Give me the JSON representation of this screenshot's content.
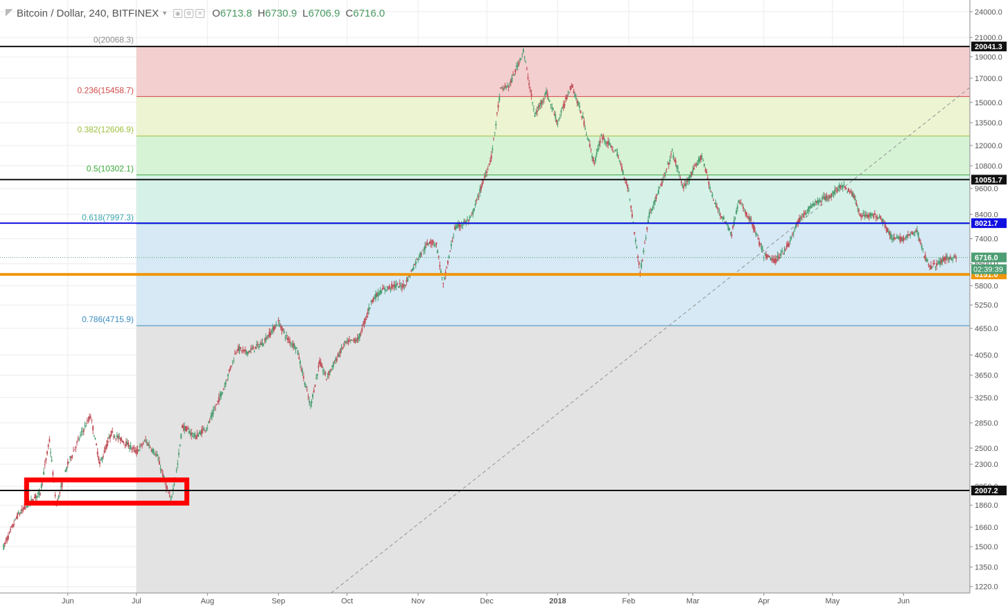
{
  "header": {
    "symbol_title": "Bitcoin / Dollar, 240, BITFINEX",
    "ohlc": [
      {
        "key": "O",
        "value": "6713.8"
      },
      {
        "key": "H",
        "value": "6730.9"
      },
      {
        "key": "L",
        "value": "6706.9"
      },
      {
        "key": "C",
        "value": "6716.0"
      }
    ]
  },
  "colors": {
    "up": "#4e9e73",
    "down": "#c0505a",
    "fib_line_0": "#8c8c8c",
    "fib_zone_0": "#f4cfcf",
    "fib_zone_1": "#ecf4d2",
    "fib_zone_2": "#d6f3d6",
    "fib_zone_3": "#d6f2e8",
    "fib_zone_4": "#d6e9f4",
    "fib_zone_5": "#e3e3e3",
    "black_line": "#111111",
    "blue_line": "#1010e0",
    "orange_line": "#f0960a",
    "highlight_box": "#ff0000",
    "current_price": "#4e9e73"
  },
  "chart_data": {
    "type": "candlestick",
    "scale": "log",
    "ylim": [
      1180,
      25500
    ],
    "x_axis_labels": [
      {
        "label": "Jun",
        "date": "2017-06-01"
      },
      {
        "label": "Jul",
        "date": "2017-07-01"
      },
      {
        "label": "Aug",
        "date": "2017-08-01"
      },
      {
        "label": "Sep",
        "date": "2017-09-01"
      },
      {
        "label": "Oct",
        "date": "2017-10-01"
      },
      {
        "label": "Nov",
        "date": "2017-11-01"
      },
      {
        "label": "Dec",
        "date": "2017-12-01"
      },
      {
        "label": "2018",
        "date": "2018-01-01",
        "bold": true
      },
      {
        "label": "Feb",
        "date": "2018-02-01"
      },
      {
        "label": "Mar",
        "date": "2018-03-01"
      },
      {
        "label": "Apr",
        "date": "2018-04-01"
      },
      {
        "label": "May",
        "date": "2018-05-01"
      },
      {
        "label": "Jun",
        "date": "2018-06-01"
      }
    ],
    "y_ticks": [
      "24000.0",
      "21000.0",
      "19000.0",
      "17000.0",
      "15000.0",
      "13500.0",
      "12000.0",
      "10800.0",
      "9600.0",
      "8400.0",
      "7400.0",
      "6500.0",
      "5800.0",
      "5250.0",
      "4650.0",
      "4050.0",
      "3650.0",
      "3250.0",
      "2850.0",
      "2500.0",
      "2300.0",
      "2050.0",
      "1860.0",
      "1660.0",
      "1500.0",
      "1350.0",
      "1220.0"
    ],
    "price_path": [
      {
        "date": "2017-05-04",
        "price": 1500
      },
      {
        "date": "2017-05-10",
        "price": 1760
      },
      {
        "date": "2017-05-14",
        "price": 1850
      },
      {
        "date": "2017-05-20",
        "price": 1990
      },
      {
        "date": "2017-05-24",
        "price": 2600
      },
      {
        "date": "2017-05-27",
        "price": 1860
      },
      {
        "date": "2017-06-01",
        "price": 2300
      },
      {
        "date": "2017-06-07",
        "price": 2700
      },
      {
        "date": "2017-06-11",
        "price": 2950
      },
      {
        "date": "2017-06-15",
        "price": 2300
      },
      {
        "date": "2017-06-20",
        "price": 2700
      },
      {
        "date": "2017-06-25",
        "price": 2600
      },
      {
        "date": "2017-07-01",
        "price": 2450
      },
      {
        "date": "2017-07-05",
        "price": 2600
      },
      {
        "date": "2017-07-10",
        "price": 2400
      },
      {
        "date": "2017-07-16",
        "price": 1900
      },
      {
        "date": "2017-07-19",
        "price": 2300
      },
      {
        "date": "2017-07-21",
        "price": 2800
      },
      {
        "date": "2017-07-27",
        "price": 2650
      },
      {
        "date": "2017-08-01",
        "price": 2800
      },
      {
        "date": "2017-08-08",
        "price": 3400
      },
      {
        "date": "2017-08-14",
        "price": 4200
      },
      {
        "date": "2017-08-18",
        "price": 4100
      },
      {
        "date": "2017-08-25",
        "price": 4300
      },
      {
        "date": "2017-09-01",
        "price": 4800
      },
      {
        "date": "2017-09-05",
        "price": 4400
      },
      {
        "date": "2017-09-09",
        "price": 4200
      },
      {
        "date": "2017-09-15",
        "price": 3100
      },
      {
        "date": "2017-09-19",
        "price": 3900
      },
      {
        "date": "2017-09-22",
        "price": 3600
      },
      {
        "date": "2017-09-30",
        "price": 4300
      },
      {
        "date": "2017-10-06",
        "price": 4400
      },
      {
        "date": "2017-10-12",
        "price": 5400
      },
      {
        "date": "2017-10-16",
        "price": 5650
      },
      {
        "date": "2017-10-21",
        "price": 5800
      },
      {
        "date": "2017-10-26",
        "price": 5800
      },
      {
        "date": "2017-11-01",
        "price": 6700
      },
      {
        "date": "2017-11-06",
        "price": 7300
      },
      {
        "date": "2017-11-09",
        "price": 7200
      },
      {
        "date": "2017-11-12",
        "price": 5800
      },
      {
        "date": "2017-11-17",
        "price": 7800
      },
      {
        "date": "2017-11-24",
        "price": 8200
      },
      {
        "date": "2017-11-29",
        "price": 9800
      },
      {
        "date": "2017-12-03",
        "price": 11300
      },
      {
        "date": "2017-12-07",
        "price": 16000
      },
      {
        "date": "2017-12-11",
        "price": 16400
      },
      {
        "date": "2017-12-17",
        "price": 19600
      },
      {
        "date": "2017-12-22",
        "price": 14000
      },
      {
        "date": "2017-12-27",
        "price": 15800
      },
      {
        "date": "2018-01-01",
        "price": 13500
      },
      {
        "date": "2018-01-07",
        "price": 16500
      },
      {
        "date": "2018-01-12",
        "price": 13800
      },
      {
        "date": "2018-01-17",
        "price": 10900
      },
      {
        "date": "2018-01-20",
        "price": 12600
      },
      {
        "date": "2018-01-27",
        "price": 11500
      },
      {
        "date": "2018-02-01",
        "price": 9500
      },
      {
        "date": "2018-02-06",
        "price": 6200
      },
      {
        "date": "2018-02-10",
        "price": 8400
      },
      {
        "date": "2018-02-16",
        "price": 10000
      },
      {
        "date": "2018-02-20",
        "price": 11600
      },
      {
        "date": "2018-02-25",
        "price": 9600
      },
      {
        "date": "2018-03-05",
        "price": 11400
      },
      {
        "date": "2018-03-10",
        "price": 9000
      },
      {
        "date": "2018-03-18",
        "price": 7600
      },
      {
        "date": "2018-03-21",
        "price": 9000
      },
      {
        "date": "2018-03-27",
        "price": 8000
      },
      {
        "date": "2018-04-01",
        "price": 6800
      },
      {
        "date": "2018-04-06",
        "price": 6600
      },
      {
        "date": "2018-04-12",
        "price": 7200
      },
      {
        "date": "2018-04-16",
        "price": 8100
      },
      {
        "date": "2018-04-23",
        "price": 8900
      },
      {
        "date": "2018-05-01",
        "price": 9300
      },
      {
        "date": "2018-05-05",
        "price": 9800
      },
      {
        "date": "2018-05-10",
        "price": 9300
      },
      {
        "date": "2018-05-13",
        "price": 8400
      },
      {
        "date": "2018-05-22",
        "price": 8300
      },
      {
        "date": "2018-05-27",
        "price": 7400
      },
      {
        "date": "2018-06-01",
        "price": 7400
      },
      {
        "date": "2018-06-07",
        "price": 7700
      },
      {
        "date": "2018-06-10",
        "price": 6800
      },
      {
        "date": "2018-06-13",
        "price": 6400
      },
      {
        "date": "2018-06-16",
        "price": 6500
      },
      {
        "date": "2018-06-20",
        "price": 6700
      },
      {
        "date": "2018-06-24",
        "price": 6716
      }
    ],
    "fib_retracement": {
      "start_date": "2017-07-01",
      "end_date": "2018-06-30",
      "levels": [
        {
          "ratio_label": "0(20068.3)",
          "price": 20068.3,
          "color": "#8c8c8c"
        },
        {
          "ratio_label": "0.236(15458.7)",
          "price": 15458.7,
          "color": "#d04848"
        },
        {
          "ratio_label": "0.382(12606.9)",
          "price": 12606.9,
          "color": "#9cbf3c"
        },
        {
          "ratio_label": "0.5(10302.1)",
          "price": 10302.1,
          "color": "#3aa83a"
        },
        {
          "ratio_label": "0.618(7997.3)",
          "price": 7997.3,
          "color": "#3aa6b0"
        },
        {
          "ratio_label": "0.786(4715.9)",
          "price": 4715.9,
          "color": "#3a8cc0"
        }
      ]
    },
    "horizontal_lines": [
      {
        "price": 20041.3,
        "label": "20041.3",
        "color": "#111111",
        "width": 2
      },
      {
        "price": 10051.7,
        "label": "10051.7",
        "color": "#111111",
        "width": 2
      },
      {
        "price": 8021.7,
        "label": "8021.7",
        "color": "#1010e0",
        "width": 2
      },
      {
        "price": 6151.0,
        "label": "6151.0",
        "color": "#f0960a",
        "width": 4
      },
      {
        "price": 2007.2,
        "label": "2007.2",
        "color": "#111111",
        "width": 2
      }
    ],
    "current_price": {
      "price": 6716.0,
      "label": "6716.0",
      "countdown": "02:39:39"
    },
    "trend_line": {
      "from": {
        "date": "2017-09-24",
        "price": 1180
      },
      "to": {
        "date": "2018-06-30",
        "price": 16200
      }
    },
    "highlight_box": {
      "from_date": "2017-05-14",
      "to_date": "2017-07-23",
      "price_top": 2120,
      "price_bottom": 1880
    }
  }
}
